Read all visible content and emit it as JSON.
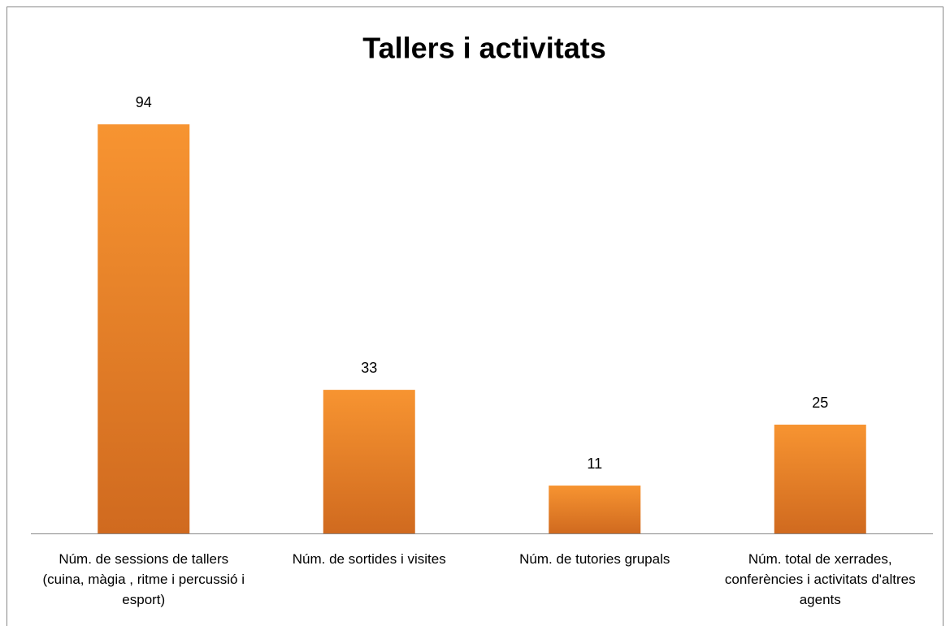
{
  "chart_data": {
    "type": "bar",
    "title": "Tallers i activitats",
    "categories": [
      "Núm. de sessions de tallers (cuina, màgia , ritme i percussió i esport)",
      "Núm. de sortides i visites",
      "Núm. de tutories grupals",
      "Núm. total de xerrades, conferències i activitats d'altres agents"
    ],
    "values": [
      94,
      33,
      11,
      25
    ],
    "color": "#f79431",
    "ylim": [
      0,
      100
    ]
  }
}
